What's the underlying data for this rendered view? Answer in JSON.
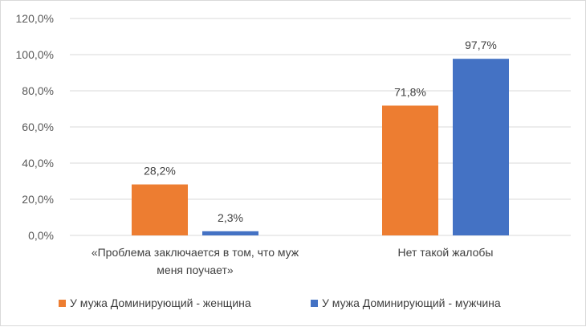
{
  "chart_data": {
    "type": "bar",
    "categories": [
      [
        "«Проблема заключается в том, что муж",
        "меня поучает»"
      ],
      [
        "Нет такой жалобы"
      ]
    ],
    "series": [
      {
        "name": "У мужа Доминирующий - женщина",
        "values": [
          28.2,
          71.8
        ],
        "labels": [
          "28,2%",
          "71,8%"
        ],
        "color": "#ED7D31"
      },
      {
        "name": "У мужа Доминирующий - мужчина",
        "values": [
          2.3,
          97.7
        ],
        "labels": [
          "2,3%",
          "97,7%"
        ],
        "color": "#4472C4"
      }
    ],
    "yticks": [
      "0,0%",
      "20,0%",
      "40,0%",
      "60,0%",
      "80,0%",
      "100,0%",
      "120,0%"
    ],
    "ylim": [
      0,
      120
    ],
    "grid": true,
    "legend": "bottom"
  }
}
